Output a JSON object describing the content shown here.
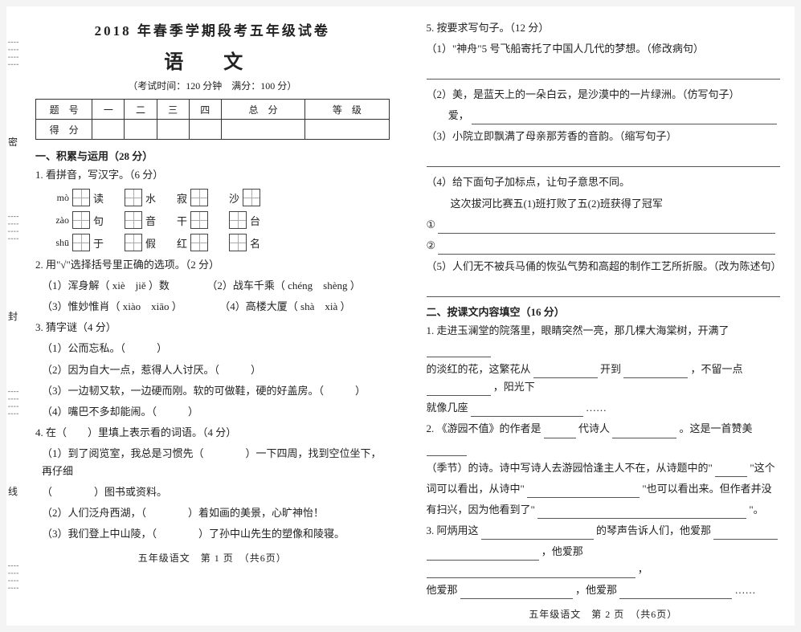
{
  "header": {
    "title": "2018 年春季学期段考五年级试卷",
    "subject": "语 文",
    "meta": "（考试时间：120 分钟　满分：100 分）"
  },
  "score_table": {
    "row1": [
      "题　号",
      "一",
      "二",
      "三",
      "四",
      "总　分",
      "等　级"
    ],
    "row2_label": "得　分"
  },
  "binding": {
    "c1": "密",
    "c2": "封",
    "c3": "线"
  },
  "left": {
    "sec1_title": "一、积累与运用（28 分）",
    "q1_title": "1. 看拼音，写汉字。（6 分）",
    "pinyin_rows": [
      [
        {
          "py": "mò",
          "ch": "读"
        },
        {
          "py": "",
          "ch": "水"
        },
        {
          "py": "",
          "pre": "寂"
        },
        {
          "py": "",
          "pre": "沙"
        }
      ],
      [
        {
          "py": "zào",
          "ch": "句"
        },
        {
          "py": "",
          "ch": "音"
        },
        {
          "py": "",
          "pre": "干"
        },
        {
          "py": "",
          "ch": "台"
        }
      ],
      [
        {
          "py": "shū",
          "ch": "于"
        },
        {
          "py": "",
          "ch": "假"
        },
        {
          "py": "",
          "pre": "红"
        },
        {
          "py": "",
          "ch": "名"
        }
      ]
    ],
    "q2_title": "2. 用\"√\"选择括号里正确的选项。（2 分）",
    "q2_items": [
      "（1）浑身解（ xiè　jiě ）数",
      "（2）战车千乘（ chéng　shèng ）",
      "（3）惟妙惟肖（ xiào　xiāo ）",
      "（4）高楼大厦（ shà　xià ）"
    ],
    "q3_title": "3. 猜字谜（4 分）",
    "q3_items": [
      "（1）公而忘私。（　　　）",
      "（2）因为自大一点，惹得人人讨厌。（　　　）",
      "（3）一边韧又软，一边硬而刚。软的可做鞋，硬的好盖房。（　　　）",
      "（4）嘴巴不多却能闹。（　　　）"
    ],
    "q4_title": "4. 在（　　）里填上表示看的词语。（4 分）",
    "q4_items": [
      "（1）到了阅览室，我总是习惯先（　　　　）一下四周，找到空位坐下，再仔细",
      "（　　　　）图书或资料。",
      "（2）人们泛舟西湖，（　　　　）着如画的美景，心旷神怡！",
      "（3）我们登上中山陵，（　　　　）了孙中山先生的塑像和陵寝。"
    ],
    "footer": "五年级语文　第 1 页　（共6页）"
  },
  "right": {
    "q5_title": "5. 按要求写句子。（12 分）",
    "q5_1": "（1）\"神舟\"5 号飞船寄托了中国人几代的梦想。（修改病句）",
    "q5_2a": "（2）美，是蓝天上的一朵白云，是沙漠中的一片绿洲。（仿写句子）",
    "q5_2b": "爱，",
    "q5_3": "（3）小院立即飘满了母亲那芳香的音韵。（缩写句子）",
    "q5_4a": "（4）给下面句子加标点，让句子意思不同。",
    "q5_4b": "这次拔河比赛五(1)班打败了五(2)班获得了冠军",
    "q5_4c1": "①",
    "q5_4c2": "②",
    "q5_5": "（5）人们无不被兵马俑的恢弘气势和高超的制作工艺所折服。（改为陈述句）",
    "sec2_title": "二、按课文内容填空（16 分）",
    "s2_1a": "1. 走进玉澜堂的院落里，眼睛突然一亮，那几棵大海棠树，开满了",
    "s2_1b": "的淡红的花，这繁花从",
    "s2_1c": "开到",
    "s2_1d": "，不留一点",
    "s2_1e": "，阳光下",
    "s2_1f": "就像几座",
    "s2_1g": "……",
    "s2_2a": "2. 《游园不值》的作者是",
    "s2_2b": "代诗人",
    "s2_2c": "。这是一首赞美",
    "s2_2d": "（季节）的诗。诗中写诗人去游园恰逢主人不在，从诗题中的\"",
    "s2_2e": "\"这个",
    "s2_2f": "词可以看出，从诗中\"",
    "s2_2g": "\"也可以看出来。但作者并没",
    "s2_2h": "有扫兴，因为他看到了\"",
    "s2_2i": "\"。",
    "s2_3a": "3. 阿炳用这",
    "s2_3b": "的琴声告诉人们，他爱那",
    "s2_3c": "，他爱那",
    "s2_3d": "，",
    "s2_3e": "他爱那",
    "s2_3f": "，他爱那",
    "s2_3g": "……",
    "footer": "五年级语文　第 2 页　（共6页）"
  }
}
